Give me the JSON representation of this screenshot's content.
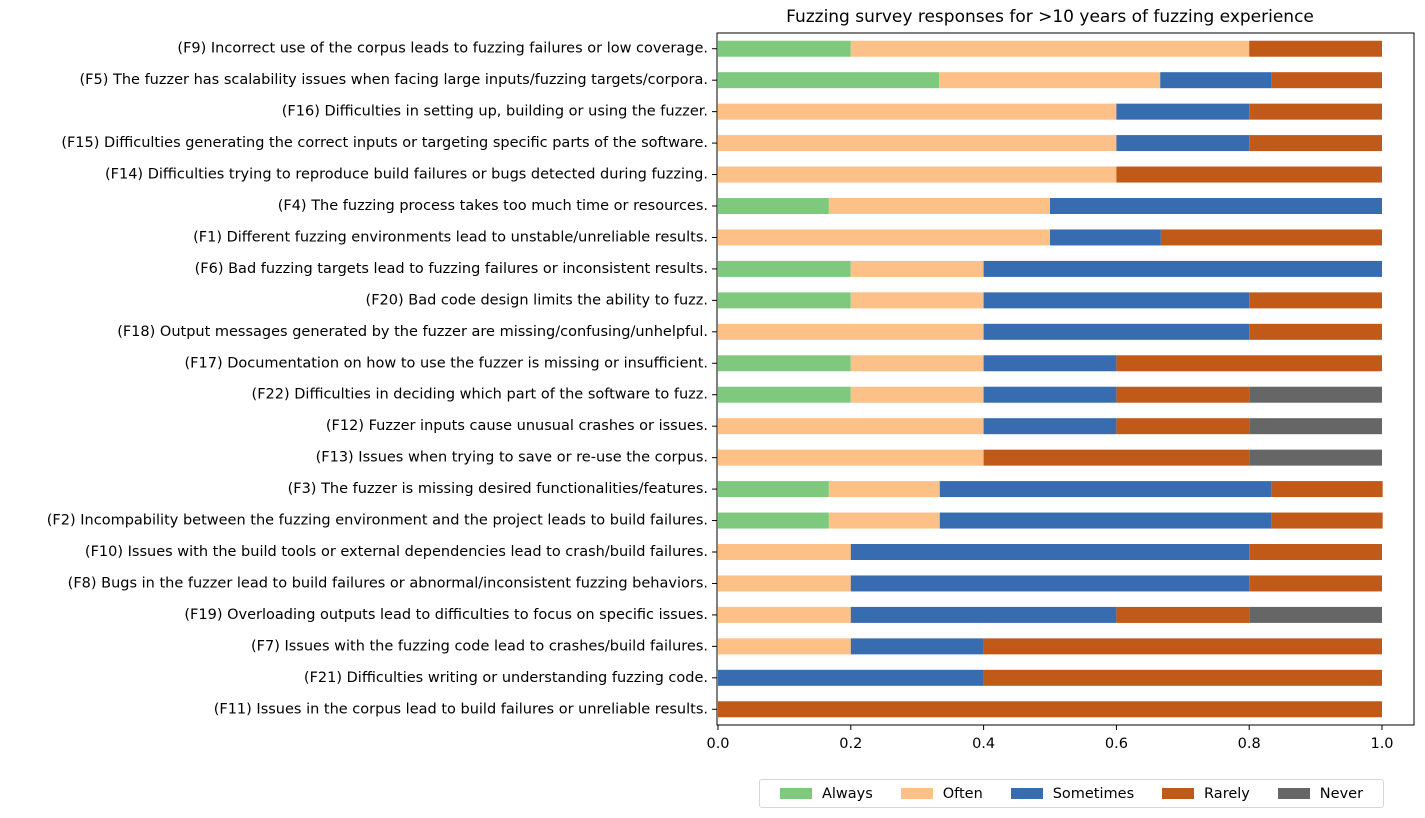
{
  "colors": {
    "Always": "#7fc97f",
    "Often": "#fdc086",
    "Sometimes": "#386cb0",
    "Rarely": "#c15a18",
    "Never": "#666666"
  },
  "chart_data": {
    "type": "bar",
    "orientation": "horizontal-stacked",
    "title": "Fuzzing survey responses for >10 years of fuzzing experience",
    "xlabel": "",
    "ylabel": "",
    "xlim": [
      0,
      1.0
    ],
    "xticks": [
      "0.0",
      "0.2",
      "0.4",
      "0.6",
      "0.8",
      "1.0"
    ],
    "grid": false,
    "legend_position": "bottom-right, below plot",
    "categories": [
      "(F9) Incorrect use of the corpus leads to fuzzing failures or low coverage.",
      "(F5) The fuzzer has scalability issues when facing large inputs/fuzzing targets/corpora.",
      "(F16) Difficulties in setting up, building or using the fuzzer.",
      "(F15) Difficulties generating the correct inputs or targeting specific parts of the software.",
      "(F14) Difficulties trying to reproduce build failures or bugs detected during fuzzing.",
      "(F4) The fuzzing process takes too much time or resources.",
      "(F1) Different fuzzing environments lead to unstable/unreliable results.",
      "(F6) Bad fuzzing targets lead to fuzzing failures or inconsistent results.",
      "(F20) Bad code design limits the ability to fuzz.",
      "(F18) Output messages generated by the fuzzer are missing/confusing/unhelpful.",
      "(F17) Documentation on how to use the fuzzer is missing or insufficient.",
      "(F22) Difficulties in deciding which part of the software to fuzz.",
      "(F12) Fuzzer inputs cause unusual crashes or issues.",
      "(F13) Issues when trying to save or re-use the corpus.",
      "(F3) The fuzzer is missing desired functionalities/features.",
      "(F2) Incompability between the fuzzing environment and the project leads to build failures.",
      "(F10) Issues with the build tools or external dependencies lead to crash/build failures.",
      "(F8) Bugs in the fuzzer lead to build failures or abnormal/inconsistent fuzzing behaviors.",
      "(F19) Overloading outputs lead to difficulties to focus on specific issues.",
      "(F7) Issues with the fuzzing code lead to crashes/build failures.",
      "(F21) Difficulties writing or understanding fuzzing code.",
      "(F11) Issues in the corpus lead to build failures or unreliable results."
    ],
    "series": [
      {
        "name": "Always",
        "values": [
          0.2,
          0.333,
          0,
          0,
          0,
          0.167,
          0,
          0.2,
          0.2,
          0,
          0.2,
          0.2,
          0,
          0,
          0.167,
          0.167,
          0,
          0,
          0,
          0,
          0,
          0
        ]
      },
      {
        "name": "Often",
        "values": [
          0.6,
          0.333,
          0.6,
          0.6,
          0.6,
          0.333,
          0.5,
          0.2,
          0.2,
          0.4,
          0.2,
          0.2,
          0.4,
          0.4,
          0.167,
          0.167,
          0.2,
          0.2,
          0.2,
          0.2,
          0,
          0
        ]
      },
      {
        "name": "Sometimes",
        "values": [
          0,
          0.167,
          0.2,
          0.2,
          0,
          0.5,
          0.167,
          0.6,
          0.4,
          0.4,
          0.2,
          0.2,
          0.2,
          0,
          0.5,
          0.5,
          0.6,
          0.6,
          0.4,
          0.2,
          0.4,
          0
        ]
      },
      {
        "name": "Rarely",
        "values": [
          0.2,
          0.167,
          0.2,
          0.2,
          0.4,
          0,
          0.333,
          0,
          0.2,
          0.2,
          0.4,
          0.2,
          0.2,
          0.4,
          0.167,
          0.167,
          0.2,
          0.2,
          0.2,
          0.6,
          0.6,
          1.0
        ]
      },
      {
        "name": "Never",
        "values": [
          0,
          0,
          0,
          0,
          0,
          0,
          0,
          0,
          0,
          0,
          0,
          0.2,
          0.2,
          0.2,
          0,
          0,
          0,
          0,
          0.2,
          0,
          0,
          0
        ]
      }
    ]
  }
}
